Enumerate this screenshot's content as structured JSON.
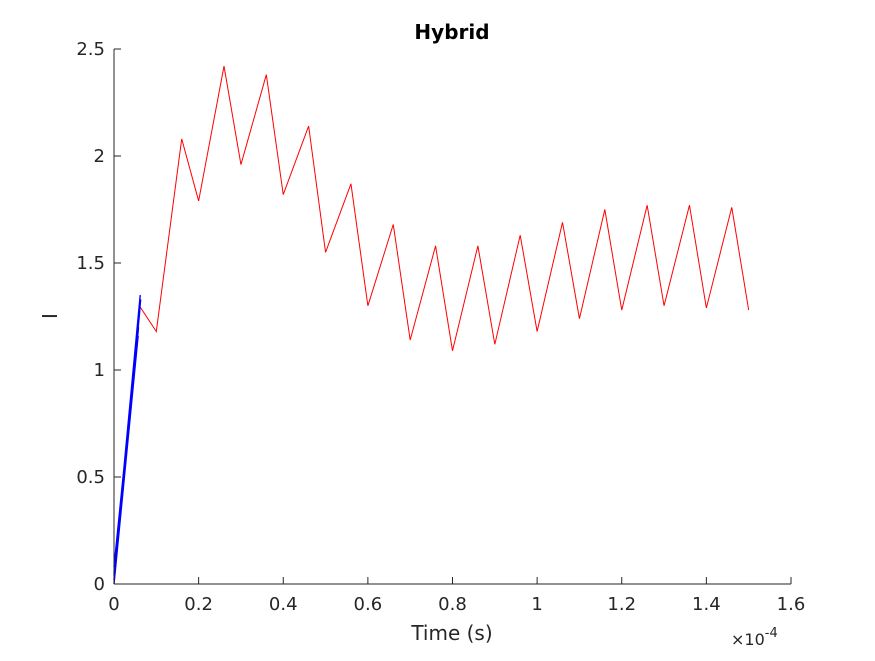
{
  "chart_data": {
    "type": "line",
    "title": "Hybrid",
    "xlabel": "Time (s)",
    "ylabel": "I",
    "x_exponent_label": {
      "base": "×10",
      "power": "-4"
    },
    "xlim": [
      0,
      1.6
    ],
    "ylim": [
      0,
      2.5
    ],
    "x_scale_note": "x values in units of 1e-4 s",
    "xticks": [
      0,
      0.2,
      0.4,
      0.6,
      0.8,
      1.0,
      1.2,
      1.4,
      1.6
    ],
    "xtick_labels": [
      "0",
      "0.2",
      "0.4",
      "0.6",
      "0.8",
      "1",
      "1.2",
      "1.4",
      "1.6"
    ],
    "yticks": [
      0,
      0.5,
      1.0,
      1.5,
      2.0,
      2.5
    ],
    "ytick_labels": [
      "0",
      "0.5",
      "1",
      "1.5",
      "2",
      "2.5"
    ],
    "grid": false,
    "legend": "none",
    "series": [
      {
        "color": "#ff0000",
        "x": [
          0.0,
          0.06,
          0.1,
          0.16,
          0.2,
          0.26,
          0.3,
          0.36,
          0.4,
          0.46,
          0.5,
          0.56,
          0.6,
          0.66,
          0.7,
          0.76,
          0.8,
          0.86,
          0.9,
          0.96,
          1.0,
          1.06,
          1.1,
          1.16,
          1.2,
          1.26,
          1.3,
          1.36,
          1.4,
          1.46,
          1.5
        ],
        "y": [
          0.0,
          1.3,
          1.18,
          2.08,
          1.79,
          2.42,
          1.96,
          2.38,
          1.82,
          2.14,
          1.55,
          1.87,
          1.3,
          1.68,
          1.14,
          1.58,
          1.09,
          1.58,
          1.12,
          1.63,
          1.18,
          1.69,
          1.24,
          1.75,
          1.28,
          1.77,
          1.3,
          1.77,
          1.29,
          1.76,
          1.28
        ]
      },
      {
        "color": "#0000ff",
        "x": [
          0.0,
          0.06,
          0.0,
          0.062,
          0.0,
          0.058,
          0.0,
          0.061,
          0.0,
          0.057,
          0.0,
          0.063,
          0.0
        ],
        "y": [
          0.0,
          1.3,
          0.05,
          1.35,
          0.02,
          1.2,
          0.08,
          1.28,
          0.0,
          1.16,
          0.04,
          1.33,
          0.0
        ]
      }
    ]
  }
}
